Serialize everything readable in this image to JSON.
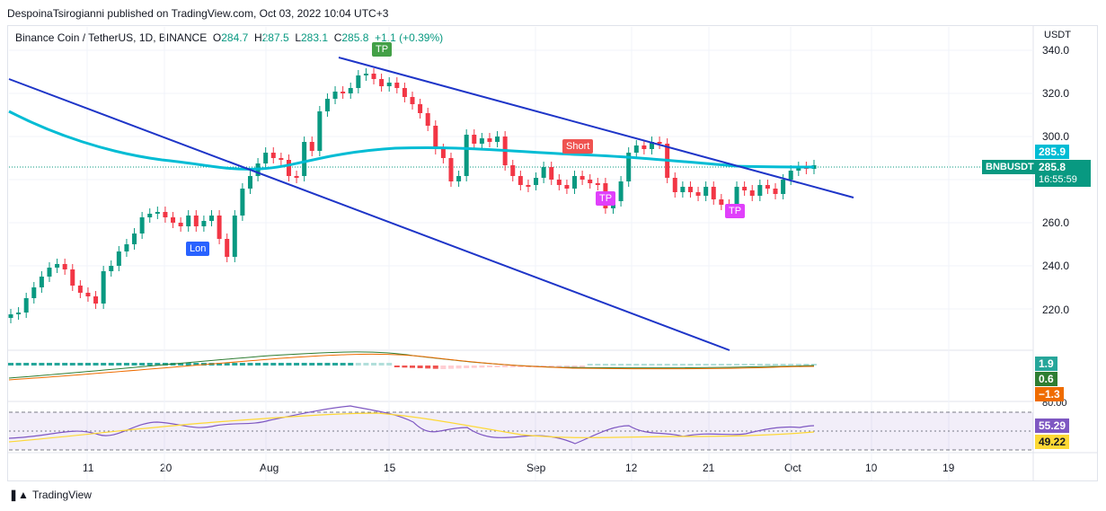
{
  "header": {
    "published": "DespoinaTsirogianni published on TradingView.com, Oct 03, 2022 10:04 UTC+3"
  },
  "legend": {
    "symbol": "Binance Coin / TetherUS, 1D, BINANCE",
    "o_label": "O",
    "o": "284.7",
    "h_label": "H",
    "h": "287.5",
    "l_label": "L",
    "l": "283.1",
    "c_label": "C",
    "c": "285.8",
    "change": "+1.1 (+0.39%)"
  },
  "price_axis": {
    "currency": "USDT",
    "ticks": [
      "340.0",
      "320.0",
      "300.0",
      "280.0",
      "260.0",
      "240.0",
      "220.0"
    ]
  },
  "time_axis": {
    "ticks": [
      "11",
      "20",
      "Aug",
      "15",
      "Sep",
      "12",
      "21",
      "Oct",
      "10",
      "19"
    ]
  },
  "price_labels": {
    "ma": "285.9",
    "symbol": "BNBUSDT",
    "last": "285.8",
    "countdown": "16:55:59",
    "macd_hist": "1.9",
    "macd_signal": "0.6",
    "macd_line": "−1.3",
    "rsi": "55.29",
    "rsi_ma": "49.22",
    "rsi_top": "80.00"
  },
  "signals": {
    "tp1": "TP",
    "tp2": "TP",
    "tp3": "TP",
    "short": "Short",
    "long": "Lon"
  },
  "footer": {
    "brand": "TradingView"
  },
  "colors": {
    "up": "#089981",
    "down": "#f23645",
    "ma": "#00bcd4",
    "trend": "#1e35c8",
    "rsi": "#7e57c2",
    "rsi_ma": "#fdd835"
  }
}
